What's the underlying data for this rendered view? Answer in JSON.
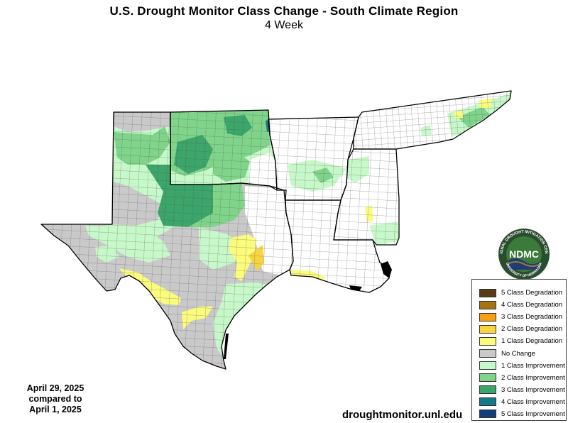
{
  "header": {
    "title": "U.S. Drought Monitor Class Change - South Climate Region",
    "subtitle": "4 Week"
  },
  "dates": {
    "current": "April 29, 2025",
    "compared": "compared to",
    "previous": "April 1, 2025"
  },
  "website": "droughtmonitor.unl.edu",
  "logo": {
    "text": "NDMC",
    "ring_text": "NATIONAL DROUGHT MITIGATION CENTER",
    "bottom_text": "UNIVERSITY OF NEBRASKA"
  },
  "legend": [
    {
      "label": "5 Class Degradation",
      "color": "#5a3a12"
    },
    {
      "label": "4 Class Degradation",
      "color": "#a5740e"
    },
    {
      "label": "3 Class Degradation",
      "color": "#f7a00f"
    },
    {
      "label": "2 Class Degradation",
      "color": "#f9d441"
    },
    {
      "label": "1 Class Degradation",
      "color": "#fbfb7d"
    },
    {
      "label": "No Change",
      "color": "#c9c9c9"
    },
    {
      "label": "1 Class Improvement",
      "color": "#c7f8c9"
    },
    {
      "label": "2 Class Improvement",
      "color": "#7fd48a"
    },
    {
      "label": "3 Class Improvement",
      "color": "#3ba56a"
    },
    {
      "label": "4 Class Improvement",
      "color": "#137a86"
    },
    {
      "label": "5 Class Improvement",
      "color": "#123f7a"
    }
  ],
  "map_colors": {
    "background_land": "#ffffff",
    "no_change": "#c9c9c9",
    "improve1": "#c7f8c9",
    "improve2": "#7fd48a",
    "improve3": "#3ba56a",
    "improve4": "#137a86",
    "degrade1": "#fbfb7d",
    "degrade2": "#f9d441",
    "outline": "#000000",
    "county_line": "#5a5a5a"
  },
  "map_regions": [
    "Texas",
    "Oklahoma",
    "Arkansas",
    "Louisiana",
    "Mississippi",
    "Tennessee"
  ]
}
